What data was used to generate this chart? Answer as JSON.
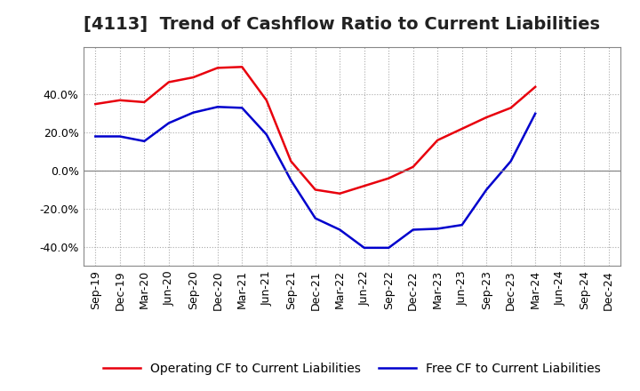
{
  "title": "[4113]  Trend of Cashflow Ratio to Current Liabilities",
  "x_labels": [
    "Sep-19",
    "Dec-19",
    "Mar-20",
    "Jun-20",
    "Sep-20",
    "Dec-20",
    "Mar-21",
    "Jun-21",
    "Sep-21",
    "Dec-21",
    "Mar-22",
    "Jun-22",
    "Sep-22",
    "Dec-22",
    "Mar-23",
    "Jun-23",
    "Sep-23",
    "Dec-23",
    "Mar-24",
    "Jun-24",
    "Sep-24",
    "Dec-24"
  ],
  "operating_cf": [
    35.0,
    37.0,
    36.0,
    46.5,
    49.0,
    54.0,
    54.5,
    37.0,
    5.0,
    -10.0,
    -12.0,
    -8.0,
    -4.0,
    2.0,
    16.0,
    22.0,
    28.0,
    33.0,
    44.0,
    null,
    null,
    null
  ],
  "free_cf": [
    18.0,
    18.0,
    15.5,
    25.0,
    30.5,
    33.5,
    33.0,
    19.0,
    -5.0,
    -25.0,
    -31.0,
    -40.5,
    -40.5,
    -31.0,
    -30.5,
    -28.5,
    -10.0,
    5.0,
    30.0,
    null,
    null,
    null
  ],
  "operating_color": "#e8000d",
  "free_color": "#0000cd",
  "ylim": [
    -50,
    65
  ],
  "yticks": [
    -40.0,
    -20.0,
    0.0,
    20.0,
    40.0
  ],
  "grid_color": "#aaaaaa",
  "bg_color": "#ffffff",
  "legend_op": "Operating CF to Current Liabilities",
  "legend_free": "Free CF to Current Liabilities",
  "title_fontsize": 14,
  "tick_fontsize": 9
}
